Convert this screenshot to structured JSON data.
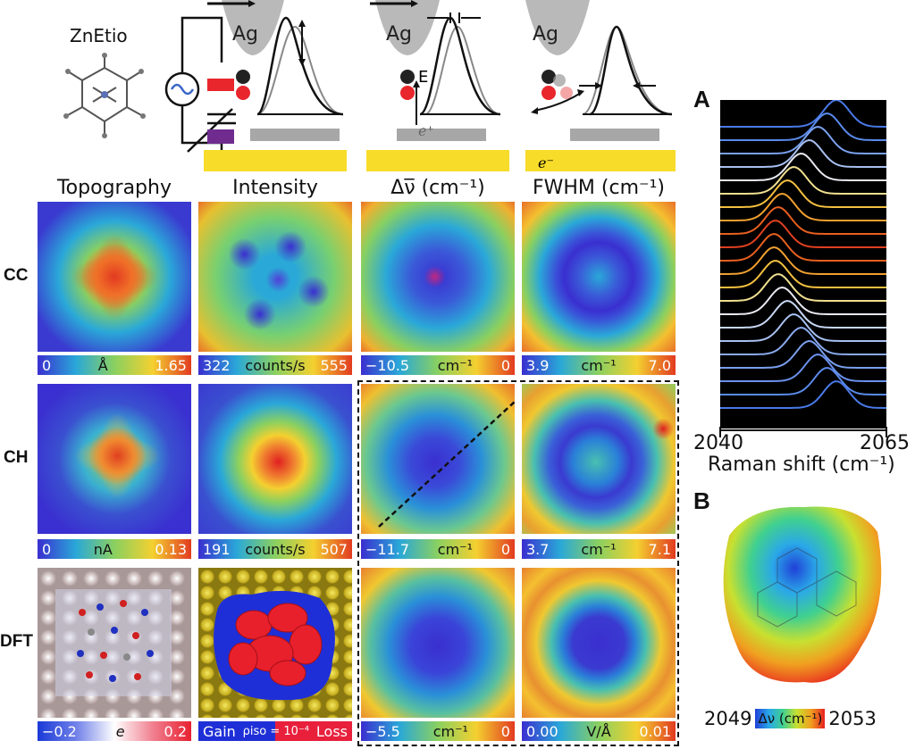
{
  "top": {
    "molecule": "ZnEtio",
    "tip_label": "Ag",
    "atom_c": "C",
    "atom_o": "O",
    "atom_e": "E",
    "electron_plus": "e⁺",
    "electron_minus": "e⁻"
  },
  "columns": {
    "topography": "Topography",
    "intensity": "Intensity",
    "shift": "Δν̅ (cm⁻¹)",
    "fwhm": "FWHM (cm⁻¹)"
  },
  "rows": {
    "cc": "CC",
    "ch": "CH",
    "dft": "DFT"
  },
  "colorbars": {
    "cc_topo": {
      "min": "0",
      "unit": "Å",
      "max": "1.65"
    },
    "cc_int": {
      "min": "322",
      "unit": "counts/s",
      "max": "555"
    },
    "cc_shift": {
      "min": "−10.5",
      "unit": "cm⁻¹",
      "max": "0"
    },
    "cc_fwhm": {
      "min": "3.9",
      "unit": "cm⁻¹",
      "max": "7.0"
    },
    "ch_topo": {
      "min": "0",
      "unit": "nA",
      "max": "0.13"
    },
    "ch_int": {
      "min": "191",
      "unit": "counts/s",
      "max": "507"
    },
    "ch_shift": {
      "min": "−11.7",
      "unit": "cm⁻¹",
      "max": "0"
    },
    "ch_fwhm": {
      "min": "3.7",
      "unit": "cm⁻¹",
      "max": "7.1"
    },
    "dft_topo": {
      "min": "−0.2",
      "unit": "e",
      "max": "0.2"
    },
    "dft_int": {
      "min": "Gain",
      "unit": "ρiso = 10⁻⁴",
      "max": "Loss"
    },
    "dft_shift": {
      "min": "−5.5",
      "unit": "cm⁻¹",
      "max": "0"
    },
    "dft_fwhm": {
      "min": "0.00",
      "unit": "V/Å",
      "max": "0.01"
    }
  },
  "panel_a": {
    "letter": "A",
    "x_min": "2040",
    "x_max": "2065",
    "xlabel": "Raman shift (cm⁻¹)"
  },
  "panel_b": {
    "letter": "B",
    "min": "2049",
    "unit": "Δν (cm⁻¹)",
    "max": "2053"
  },
  "colors": {
    "jet_low": "#3a2fd0",
    "jet_high": "#d9302a",
    "gold_substrate": "#f7dc2a",
    "spectra_bg": "#000000"
  }
}
